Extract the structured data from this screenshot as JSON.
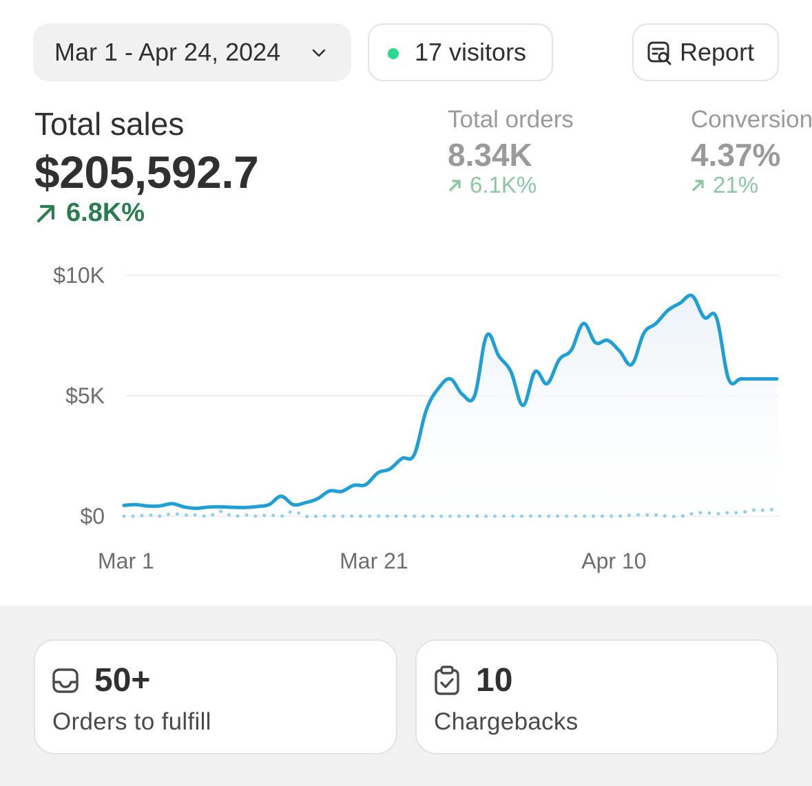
{
  "toolbar": {
    "date_range": "Mar 1 - Apr 24, 2024",
    "visitors": "17 visitors",
    "report": "Report",
    "live_dot_color": "#29d98c"
  },
  "metrics": {
    "total_sales": {
      "label": "Total sales",
      "value": "$205,592.7",
      "delta": "6.8K%"
    },
    "total_orders": {
      "label": "Total orders",
      "value": "8.34K",
      "delta": "6.1K%"
    },
    "conversion": {
      "label": "Conversion",
      "value": "4.37%",
      "delta": "21%"
    }
  },
  "chart_data": {
    "type": "line",
    "x_ticks": [
      "Mar 1",
      "Mar 21",
      "Apr 10"
    ],
    "y_ticks": [
      "$0",
      "$5K",
      "$10K"
    ],
    "ylim": [
      0,
      10000
    ],
    "x": [
      "Mar 1",
      "Mar 2",
      "Mar 3",
      "Mar 4",
      "Mar 5",
      "Mar 6",
      "Mar 7",
      "Mar 8",
      "Mar 9",
      "Mar 10",
      "Mar 11",
      "Mar 12",
      "Mar 13",
      "Mar 14",
      "Mar 15",
      "Mar 16",
      "Mar 17",
      "Mar 18",
      "Mar 19",
      "Mar 20",
      "Mar 21",
      "Mar 22",
      "Mar 23",
      "Mar 24",
      "Mar 25",
      "Mar 26",
      "Mar 27",
      "Mar 28",
      "Mar 29",
      "Mar 30",
      "Mar 31",
      "Apr 1",
      "Apr 2",
      "Apr 3",
      "Apr 4",
      "Apr 5",
      "Apr 6",
      "Apr 7",
      "Apr 8",
      "Apr 9",
      "Apr 10",
      "Apr 11",
      "Apr 12",
      "Apr 13",
      "Apr 14",
      "Apr 15",
      "Apr 16",
      "Apr 17",
      "Apr 18",
      "Apr 19",
      "Apr 20",
      "Apr 21",
      "Apr 22",
      "Apr 23",
      "Apr 24"
    ],
    "series": [
      {
        "values": [
          450,
          480,
          420,
          430,
          520,
          380,
          330,
          380,
          390,
          370,
          360,
          400,
          480,
          830,
          480,
          560,
          720,
          1050,
          1030,
          1280,
          1310,
          1800,
          1960,
          2400,
          2550,
          4400,
          5300,
          5700,
          5050,
          5000,
          7500,
          6650,
          6000,
          4600,
          6000,
          5500,
          6500,
          6900,
          8000,
          7200,
          7300,
          6850,
          6300,
          7600,
          8000,
          8550,
          8850,
          9150,
          8250,
          8250,
          5700,
          5700,
          5700,
          5700,
          5700
        ],
        "color": "#1f9fd6"
      },
      {
        "values": [
          0,
          0,
          50,
          0,
          100,
          50,
          50,
          0,
          200,
          0,
          50,
          0,
          50,
          0,
          200,
          0,
          0,
          0,
          0,
          0,
          0,
          0,
          0,
          0,
          0,
          0,
          0,
          0,
          0,
          0,
          0,
          0,
          0,
          0,
          0,
          0,
          0,
          0,
          0,
          0,
          0,
          0,
          50,
          50,
          50,
          0,
          0,
          100,
          150,
          100,
          150,
          150,
          250,
          250,
          300
        ],
        "color": "#8fd0ea",
        "style": "dotted"
      }
    ]
  },
  "cards": {
    "orders": {
      "value": "50+",
      "label": "Orders to fulfill"
    },
    "chargebacks": {
      "value": "10",
      "label": "Chargebacks"
    }
  }
}
